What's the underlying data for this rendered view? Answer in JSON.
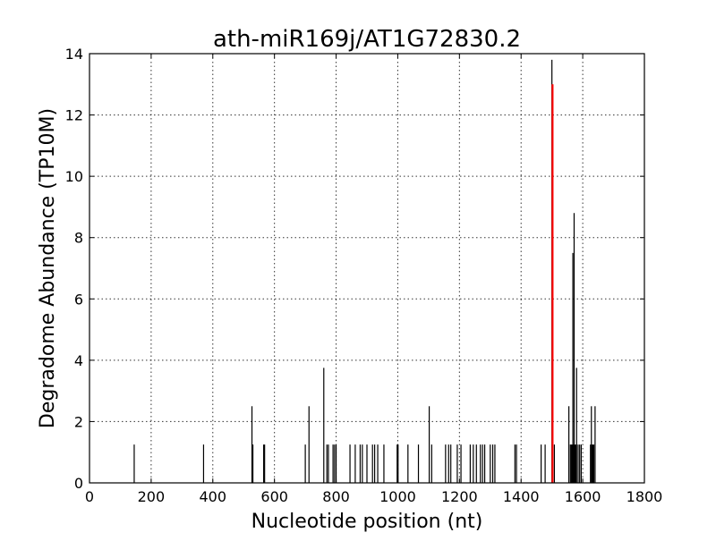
{
  "chart_data": {
    "type": "bar",
    "title": "ath-miR169j/AT1G72830.2",
    "xlabel": "Nucleotide position (nt)",
    "ylabel": "Degradome Abundance (TP10M)",
    "xlim": [
      0,
      1800
    ],
    "ylim": [
      0,
      14
    ],
    "grid": true,
    "x_ticks": [
      "0",
      "200",
      "400",
      "600",
      "800",
      "1000",
      "1200",
      "1400",
      "1600",
      "1800"
    ],
    "y_ticks": [
      "0",
      "2",
      "4",
      "6",
      "8",
      "10",
      "12",
      "14"
    ],
    "series": [
      {
        "color": "#000000",
        "points": [
          [
            145,
            1.25
          ],
          [
            370,
            1.25
          ],
          [
            527,
            2.5
          ],
          [
            530,
            1.25
          ],
          [
            565,
            1.25
          ],
          [
            568,
            1.25
          ],
          [
            700,
            1.25
          ],
          [
            712,
            2.5
          ],
          [
            760,
            3.75
          ],
          [
            770,
            1.25
          ],
          [
            775,
            1.25
          ],
          [
            790,
            1.25
          ],
          [
            795,
            1.25
          ],
          [
            800,
            1.25
          ],
          [
            845,
            1.25
          ],
          [
            862,
            1.25
          ],
          [
            878,
            1.25
          ],
          [
            885,
            1.25
          ],
          [
            900,
            1.25
          ],
          [
            918,
            1.25
          ],
          [
            925,
            1.25
          ],
          [
            935,
            1.25
          ],
          [
            955,
            1.25
          ],
          [
            998,
            1.25
          ],
          [
            1001,
            1.25
          ],
          [
            1033,
            1.25
          ],
          [
            1067,
            1.25
          ],
          [
            1102,
            2.5
          ],
          [
            1110,
            1.25
          ],
          [
            1155,
            1.25
          ],
          [
            1165,
            1.25
          ],
          [
            1172,
            1.25
          ],
          [
            1193,
            1.25
          ],
          [
            1205,
            1.25
          ],
          [
            1235,
            1.25
          ],
          [
            1245,
            1.25
          ],
          [
            1255,
            1.25
          ],
          [
            1268,
            1.25
          ],
          [
            1275,
            1.25
          ],
          [
            1282,
            1.25
          ],
          [
            1300,
            1.25
          ],
          [
            1308,
            1.25
          ],
          [
            1315,
            1.25
          ],
          [
            1380,
            1.25
          ],
          [
            1385,
            1.25
          ],
          [
            1465,
            1.25
          ],
          [
            1478,
            1.25
          ],
          [
            1500,
            13.8
          ],
          [
            1508,
            1.25
          ],
          [
            1555,
            2.5
          ],
          [
            1560,
            1.25
          ],
          [
            1563,
            1.25
          ],
          [
            1566,
            1.25
          ],
          [
            1568,
            7.5
          ],
          [
            1570,
            1.25
          ],
          [
            1572,
            8.8
          ],
          [
            1575,
            1.25
          ],
          [
            1578,
            1.25
          ],
          [
            1580,
            3.75
          ],
          [
            1585,
            1.25
          ],
          [
            1590,
            1.25
          ],
          [
            1595,
            1.25
          ],
          [
            1625,
            1.25
          ],
          [
            1628,
            2.5
          ],
          [
            1630,
            1.25
          ],
          [
            1633,
            1.25
          ],
          [
            1636,
            1.25
          ],
          [
            1640,
            2.5
          ]
        ]
      },
      {
        "color": "#ff0000",
        "points": [
          [
            1502,
            13.0
          ]
        ]
      }
    ]
  }
}
